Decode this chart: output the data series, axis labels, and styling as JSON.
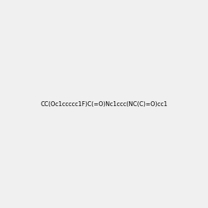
{
  "smiles": "CC(Oc1ccccc1F)C(=O)Nc1ccc(NC(C)=O)cc1",
  "image_size": 300,
  "background_color": "#f0f0f0",
  "title": "",
  "bond_color": "#000000",
  "atom_colors": {
    "N": "#4444ff",
    "O": "#ff0000",
    "F": "#ff00ff"
  }
}
